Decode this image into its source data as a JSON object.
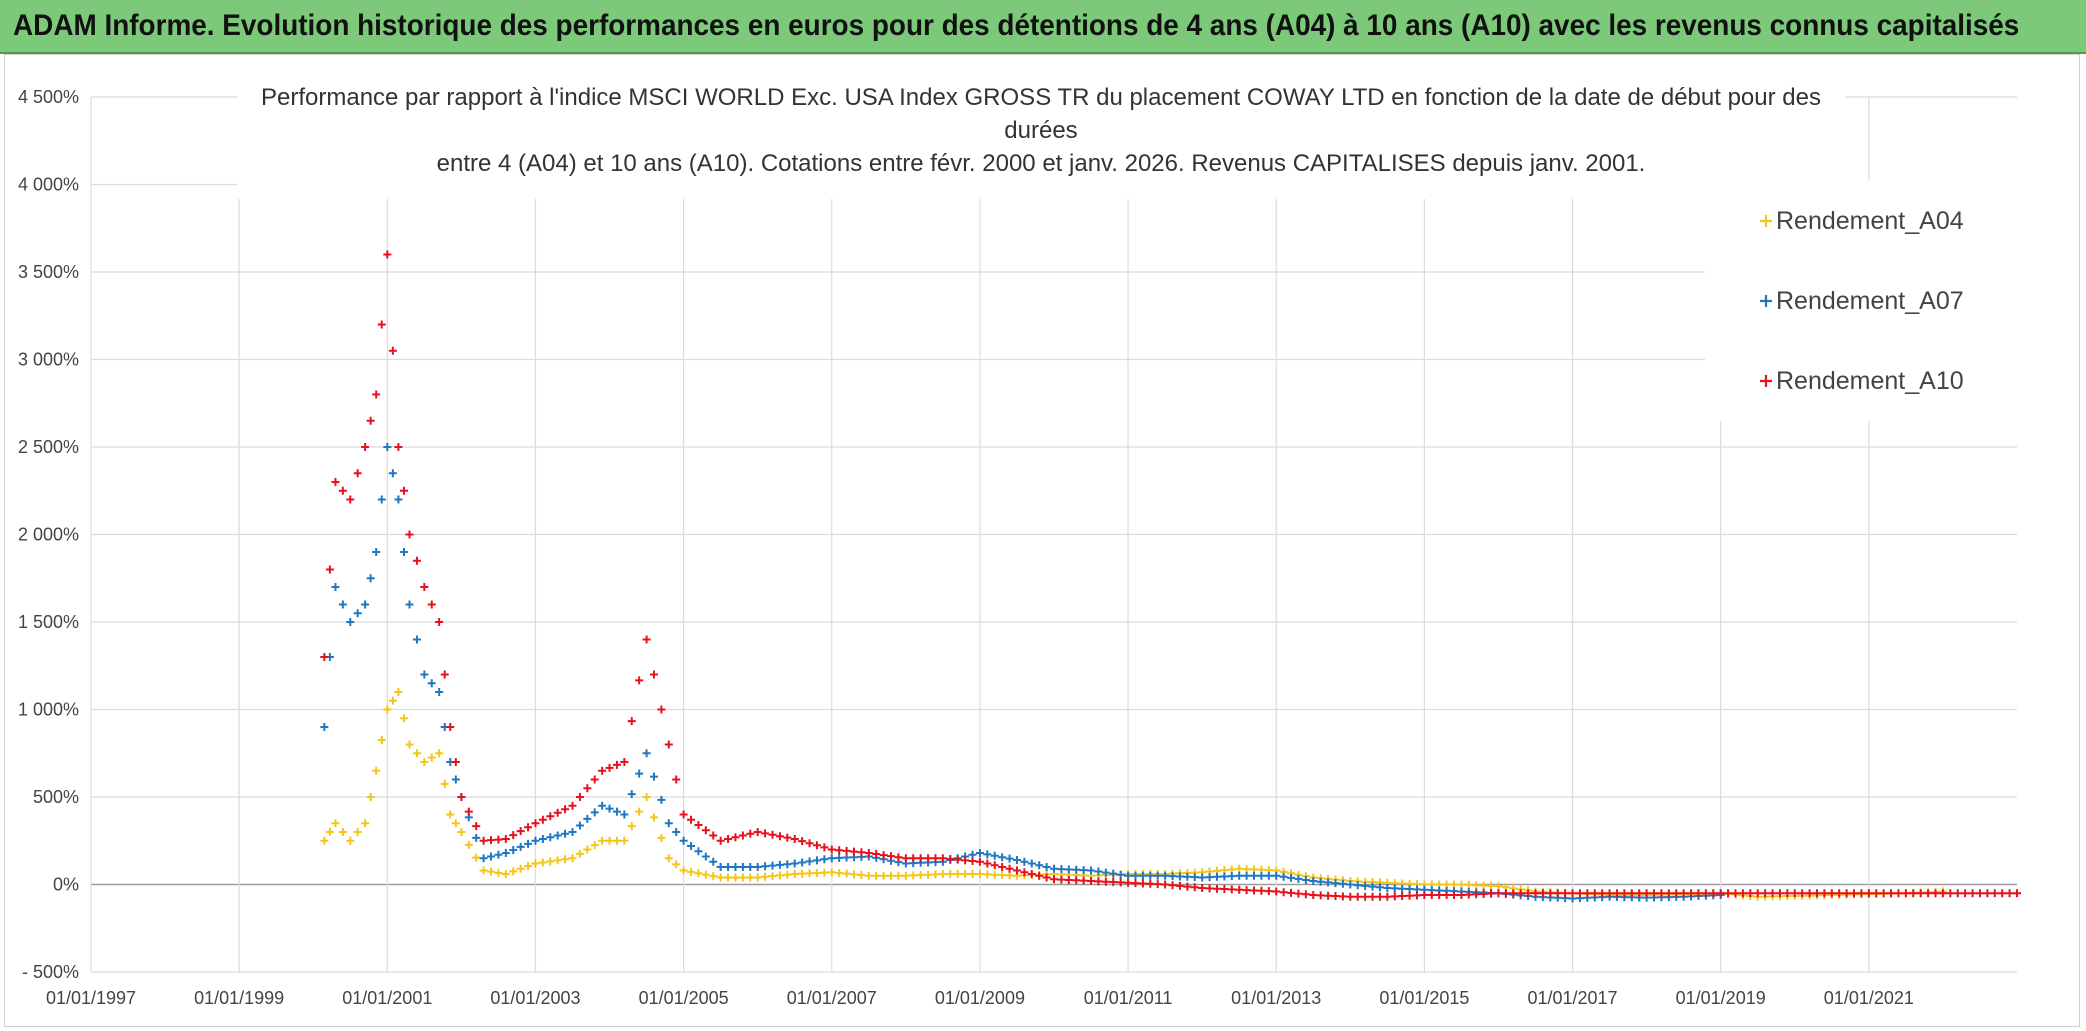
{
  "banner": {
    "title": "ADAM Informe. Evolution historique des performances en euros pour des détentions de 4 ans (A04) à 10 ans (A10) avec les revenus connus capitalisés"
  },
  "chart_data": {
    "type": "scatter",
    "title_lines": [
      "Performance par rapport à l'indice MSCI WORLD Exc. USA Index GROSS TR  du placement COWAY LTD en fonction de la date de début pour des",
      "durées",
      "entre 4 (A04) et 10 ans (A10). Cotations entre févr. 2000 et janv. 2026. Revenus CAPITALISES depuis janv. 2001."
    ],
    "ylim": [
      -500,
      4500
    ],
    "y_ticks": [
      4500,
      4000,
      3500,
      3000,
      2500,
      2000,
      1500,
      1000,
      500,
      0,
      -500
    ],
    "y_tick_labels": [
      "4 500%",
      "4 000%",
      "3 500%",
      "3 000%",
      "2 500%",
      "2 000%",
      "1 500%",
      "1 000%",
      "500%",
      "0%",
      "- 500%"
    ],
    "x_range": [
      1997.0,
      2023.0
    ],
    "x_tick_labels": [
      "01/01/1997",
      "01/01/1999",
      "01/01/2001",
      "01/01/2003",
      "01/01/2005",
      "01/01/2007",
      "01/01/2009",
      "01/01/2011",
      "01/01/2013",
      "01/01/2015",
      "01/01/2017",
      "01/01/2019",
      "01/01/2021"
    ],
    "x_ticks": [
      1997,
      1999,
      2001,
      2003,
      2005,
      2007,
      2009,
      2011,
      2013,
      2015,
      2017,
      2019,
      2021
    ],
    "legend_position": "top-right",
    "series": [
      {
        "name": "Rendement_A04",
        "color": "#f5c518",
        "x": [
          2000.15,
          2000.3,
          2000.5,
          2000.7,
          2000.85,
          2001.0,
          2001.15,
          2001.3,
          2001.5,
          2001.7,
          2001.85,
          2002.0,
          2002.3,
          2002.6,
          2003.0,
          2003.5,
          2003.9,
          2004.2,
          2004.5,
          2004.8,
          2005.0,
          2005.5,
          2006.0,
          2006.5,
          2007.0,
          2007.5,
          2008.0,
          2008.5,
          2009.0,
          2009.5,
          2010.0,
          2010.5,
          2011.0,
          2011.5,
          2012.0,
          2012.5,
          2013.0,
          2013.5,
          2014.0,
          2014.5,
          2015.0,
          2015.5,
          2016.0,
          2016.5,
          2017.0,
          2017.5,
          2018.0,
          2018.5,
          2019.0,
          2019.5,
          2020.0,
          2020.5,
          2021.0,
          2021.5,
          2022.0
        ],
        "y": [
          250,
          350,
          250,
          350,
          650,
          1000,
          1100,
          800,
          700,
          750,
          400,
          300,
          80,
          60,
          120,
          150,
          250,
          250,
          500,
          150,
          80,
          40,
          40,
          60,
          70,
          50,
          50,
          60,
          60,
          50,
          60,
          50,
          60,
          60,
          70,
          90,
          80,
          40,
          20,
          10,
          0,
          0,
          -10,
          -40,
          -50,
          -60,
          -60,
          -55,
          -50,
          -70,
          -65,
          -60,
          -55,
          -50,
          -40
        ]
      },
      {
        "name": "Rendement_A07",
        "color": "#1f77c4",
        "x": [
          2000.15,
          2000.3,
          2000.5,
          2000.7,
          2000.85,
          2001.0,
          2001.15,
          2001.3,
          2001.5,
          2001.7,
          2001.85,
          2002.0,
          2002.3,
          2002.6,
          2003.0,
          2003.5,
          2003.9,
          2004.2,
          2004.5,
          2004.8,
          2005.0,
          2005.5,
          2006.0,
          2006.5,
          2007.0,
          2007.5,
          2008.0,
          2008.5,
          2009.0,
          2009.5,
          2010.0,
          2010.5,
          2011.0,
          2011.5,
          2012.0,
          2012.5,
          2013.0,
          2013.5,
          2014.0,
          2014.5,
          2015.0,
          2015.5,
          2016.0,
          2016.5,
          2017.0,
          2017.5,
          2018.0,
          2018.5,
          2019.0
        ],
        "y": [
          900,
          1700,
          1500,
          1600,
          1900,
          2500,
          2200,
          1600,
          1200,
          1100,
          700,
          500,
          150,
          180,
          250,
          300,
          450,
          400,
          750,
          350,
          250,
          100,
          100,
          120,
          150,
          160,
          120,
          130,
          180,
          140,
          90,
          80,
          50,
          50,
          40,
          50,
          50,
          20,
          0,
          -20,
          -30,
          -40,
          -50,
          -70,
          -80,
          -70,
          -75,
          -70,
          -60
        ]
      },
      {
        "name": "Rendement_A10",
        "color": "#e8101c",
        "x": [
          2000.15,
          2000.3,
          2000.5,
          2000.7,
          2000.85,
          2001.0,
          2001.15,
          2001.3,
          2001.5,
          2001.7,
          2001.85,
          2002.0,
          2002.3,
          2002.6,
          2003.0,
          2003.5,
          2003.9,
          2004.2,
          2004.5,
          2004.8,
          2005.0,
          2005.5,
          2006.0,
          2006.5,
          2007.0,
          2007.5,
          2008.0,
          2008.5,
          2009.0,
          2009.5,
          2010.0,
          2010.5,
          2011.0,
          2011.5,
          2012.0,
          2012.5,
          2013.0,
          2013.5,
          2014.0,
          2014.5,
          2015.0,
          2015.5,
          2016.0,
          2016.5,
          2017.0,
          2017.5,
          2018.0,
          2018.5,
          2019.0,
          2019.5,
          2020.0,
          2020.5,
          2021.0,
          2021.5,
          2022.0,
          2022.5,
          2023.0
        ],
        "y": [
          1300,
          2300,
          2200,
          2500,
          2800,
          3600,
          2500,
          2000,
          1700,
          1500,
          900,
          500,
          250,
          260,
          350,
          450,
          650,
          700,
          1400,
          800,
          400,
          250,
          300,
          260,
          200,
          180,
          150,
          150,
          130,
          80,
          30,
          20,
          10,
          0,
          -20,
          -30,
          -40,
          -60,
          -70,
          -70,
          -60,
          -60,
          -50,
          -50,
          -50,
          -50,
          -50,
          -50,
          -50,
          -50,
          -50,
          -50,
          -50,
          -50,
          -50,
          -50,
          -50
        ]
      }
    ]
  }
}
